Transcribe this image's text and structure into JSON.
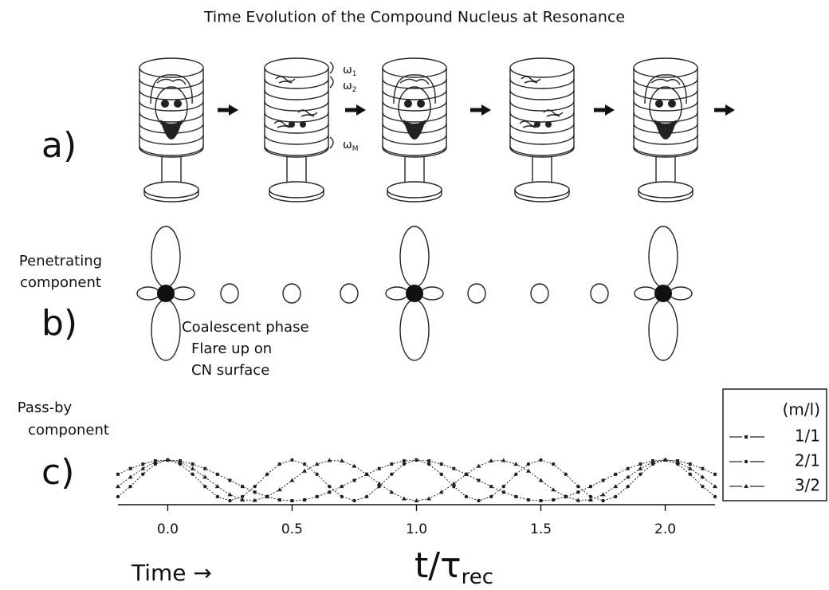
{
  "title": "Time Evolution of the Compound Nucleus at Resonance",
  "panel_a": {
    "label": "a)",
    "frequencies": [
      {
        "symbol": "ω",
        "subscript": "1"
      },
      {
        "symbol": "ω",
        "subscript": "2"
      },
      {
        "symbol": "ω",
        "subscript": "M"
      }
    ]
  },
  "panel_b": {
    "label": "b)",
    "side_label": [
      "Penetrating",
      "component"
    ],
    "annotation": [
      "Coalescent phase",
      "Flare up on",
      "CN surface"
    ]
  },
  "chart_data": {
    "type": "line",
    "label": "c)",
    "side_label": [
      "Pass-by",
      "component"
    ],
    "x_label": {
      "main": "t/τ",
      "subscript": "rec"
    },
    "time_label": "Time →",
    "legend_title": "(m/l)",
    "legend": "right",
    "x": [
      -0.2,
      -0.15,
      -0.1,
      -0.05,
      0,
      0.05,
      0.1,
      0.15,
      0.2,
      0.25,
      0.3,
      0.35,
      0.4,
      0.45,
      0.5,
      0.55,
      0.6,
      0.65,
      0.7,
      0.75,
      0.8,
      0.85,
      0.9,
      0.95,
      1,
      1.05,
      1.1,
      1.15,
      1.2,
      1.25,
      1.3,
      1.35,
      1.4,
      1.45,
      1.5,
      1.55,
      1.6,
      1.65,
      1.7,
      1.75,
      1.8,
      1.85,
      1.9,
      1.95,
      2,
      2.05,
      2.1,
      2.15,
      2.2
    ],
    "series": [
      {
        "name": "1/1",
        "color": "#222222",
        "marker": "square",
        "values": [
          0.65,
          0.79,
          0.9,
          0.98,
          1,
          0.98,
          0.9,
          0.79,
          0.65,
          0.5,
          0.35,
          0.21,
          0.1,
          0.02,
          0,
          0.02,
          0.1,
          0.21,
          0.35,
          0.5,
          0.65,
          0.79,
          0.9,
          0.98,
          1,
          0.98,
          0.9,
          0.79,
          0.65,
          0.5,
          0.35,
          0.21,
          0.1,
          0.02,
          0,
          0.02,
          0.1,
          0.21,
          0.35,
          0.5,
          0.65,
          0.79,
          0.9,
          0.98,
          1,
          0.98,
          0.9,
          0.79,
          0.65
        ]
      },
      {
        "name": "2/1",
        "color": "#222222",
        "marker": "circle",
        "values": [
          0.1,
          0.35,
          0.65,
          0.9,
          1,
          0.9,
          0.65,
          0.35,
          0.1,
          0,
          0.1,
          0.35,
          0.65,
          0.9,
          1,
          0.9,
          0.65,
          0.35,
          0.1,
          0,
          0.1,
          0.35,
          0.65,
          0.9,
          1,
          0.9,
          0.65,
          0.35,
          0.1,
          0,
          0.1,
          0.35,
          0.65,
          0.9,
          1,
          0.9,
          0.65,
          0.35,
          0.1,
          0,
          0.1,
          0.35,
          0.65,
          0.9,
          1,
          0.9,
          0.65,
          0.35,
          0.1
        ]
      },
      {
        "name": "3/2",
        "color": "#222222",
        "marker": "triangle",
        "values": [
          0.35,
          0.58,
          0.79,
          0.95,
          1,
          0.95,
          0.79,
          0.58,
          0.35,
          0.15,
          0.02,
          0.01,
          0.1,
          0.27,
          0.5,
          0.73,
          0.9,
          0.99,
          0.98,
          0.85,
          0.65,
          0.42,
          0.21,
          0.05,
          0,
          0.05,
          0.21,
          0.42,
          0.65,
          0.85,
          0.98,
          0.99,
          0.9,
          0.73,
          0.5,
          0.27,
          0.1,
          0.01,
          0.02,
          0.15,
          0.35,
          0.58,
          0.79,
          0.95,
          1,
          0.95,
          0.79,
          0.58,
          0.35
        ]
      }
    ],
    "xlim": [
      -0.2,
      2.2
    ],
    "ylim": [
      0,
      1
    ],
    "xticks": [
      {
        "value": 0,
        "label": "0.0"
      },
      0.5,
      {
        "value": 1,
        "label": "1.0"
      },
      1.5,
      {
        "value": 2,
        "label": "2.0"
      }
    ]
  }
}
